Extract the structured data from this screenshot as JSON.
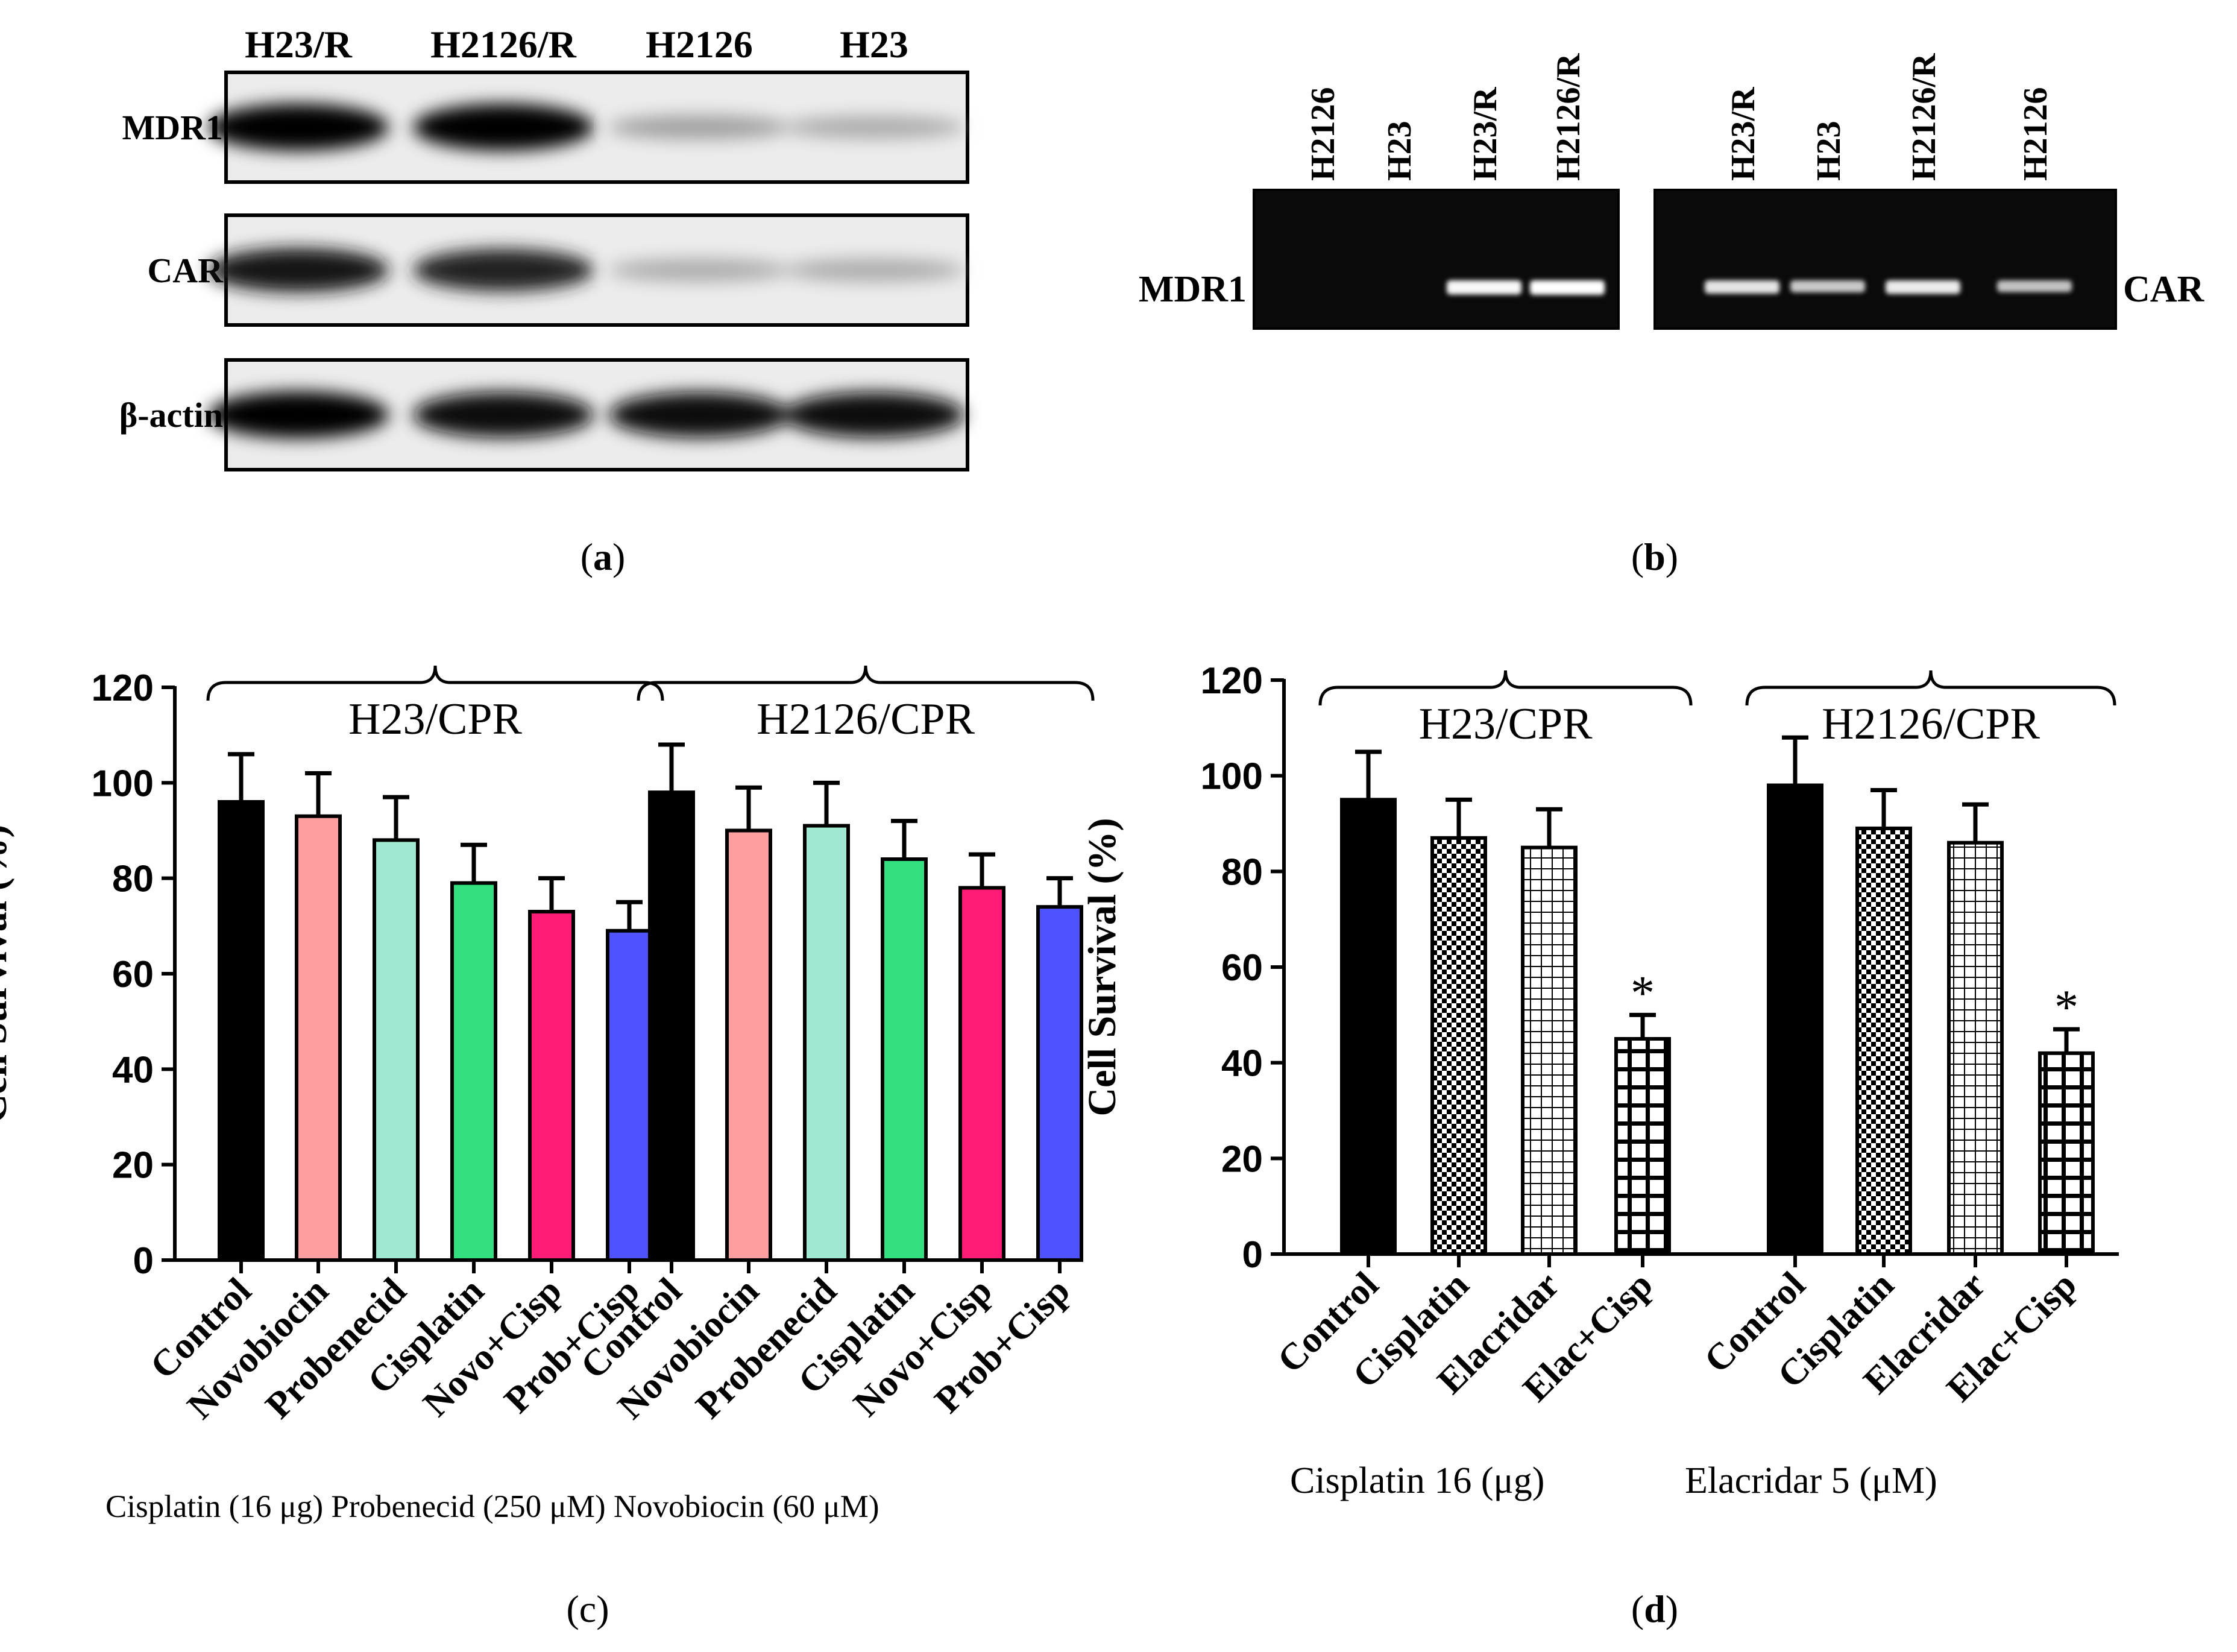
{
  "panel_a": {
    "label": "a",
    "lanes": [
      "H23/R",
      "H2126/R",
      "H2126",
      "H23"
    ],
    "rows": [
      {
        "name": "MDR1",
        "intensity": [
          1.0,
          1.0,
          0.25,
          0.2
        ]
      },
      {
        "name": "CAR",
        "intensity": [
          0.9,
          0.85,
          0.2,
          0.2
        ]
      },
      {
        "name": "β-actin",
        "intensity": [
          1.0,
          0.95,
          0.95,
          0.95
        ]
      }
    ]
  },
  "panel_b": {
    "label": "b",
    "left_gel": {
      "row_label": "MDR1",
      "lanes": [
        "H2126",
        "H23",
        "H23/R",
        "H2126/R"
      ],
      "intensity": [
        0.0,
        0.0,
        0.95,
        1.0
      ]
    },
    "right_gel": {
      "row_label": "CAR",
      "lanes": [
        "H23/R",
        "H23",
        "H2126/R",
        "H2126"
      ],
      "intensity": [
        0.8,
        0.6,
        0.85,
        0.55
      ]
    }
  },
  "chart_data": [
    {
      "type": "bar",
      "panel": "c",
      "ylabel": "Cell Survival (%)",
      "ylim": [
        0,
        120
      ],
      "yticks": [
        0,
        20,
        40,
        60,
        80,
        100,
        120
      ],
      "groups": [
        {
          "name": "H23/CPR",
          "categories": [
            "Control",
            "Novobiocin",
            "Probenecid",
            "Cisplatin",
            "Novo+Cisp",
            "Prob+Cisp"
          ],
          "values": [
            96,
            93,
            88,
            79,
            73,
            69
          ],
          "errors": [
            10,
            9,
            9,
            8,
            7,
            6
          ],
          "colors": [
            "#000000",
            "#FF9E9E",
            "#9FE8D2",
            "#33E07F",
            "#FF1C76",
            "#4F52FF"
          ]
        },
        {
          "name": "H2126/CPR",
          "categories": [
            "Control",
            "Novobiocin",
            "Probenecid",
            "Cisplatin",
            "Novo+Cisp",
            "Prob+Cisp"
          ],
          "values": [
            98,
            90,
            91,
            84,
            78,
            74
          ],
          "errors": [
            10,
            9,
            9,
            8,
            7,
            6
          ],
          "colors": [
            "#000000",
            "#FF9E9E",
            "#9FE8D2",
            "#33E07F",
            "#FF1C76",
            "#4F52FF"
          ]
        }
      ],
      "footnote": "Cisplatin (16 μg)  Probenecid (250 μM)  Novobiocin (60 μM)"
    },
    {
      "type": "bar",
      "panel": "d",
      "ylabel": "Cell Survival (%)",
      "ylim": [
        0,
        120
      ],
      "yticks": [
        0,
        20,
        40,
        60,
        80,
        100,
        120
      ],
      "groups": [
        {
          "name": "H23/CPR",
          "categories": [
            "Control",
            "Cisplatin",
            "Elacridar",
            "Elac+Cisp"
          ],
          "values": [
            95,
            87,
            85,
            45
          ],
          "errors": [
            10,
            8,
            8,
            5
          ],
          "fills": [
            "solid",
            "checker",
            "grid",
            "coarse-grid"
          ],
          "annotations": [
            "",
            "",
            "",
            "*"
          ]
        },
        {
          "name": "H2126/CPR",
          "categories": [
            "Control",
            "Cisplatin",
            "Elacridar",
            "Elac+Cisp"
          ],
          "values": [
            98,
            89,
            86,
            42
          ],
          "errors": [
            10,
            8,
            8,
            5
          ],
          "fills": [
            "solid",
            "checker",
            "grid",
            "coarse-grid"
          ],
          "annotations": [
            "",
            "",
            "",
            "*"
          ]
        }
      ],
      "footnote_left": "Cisplatin  16 (μg)",
      "footnote_right": "Elacridar  5 (μM)"
    }
  ]
}
